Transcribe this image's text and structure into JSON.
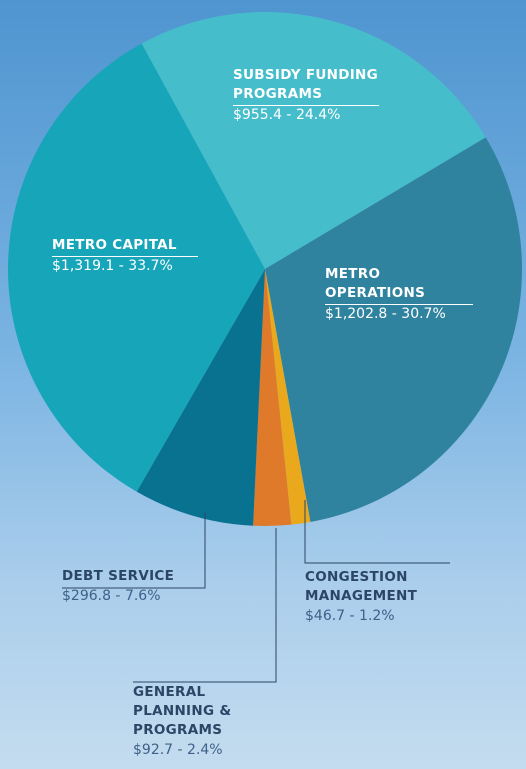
{
  "chart_data": {
    "type": "pie",
    "categories": [
      "SUBSIDY FUNDING PROGRAMS",
      "METRO OPERATIONS",
      "CONGESTION MANAGEMENT",
      "GENERAL PLANNING & PROGRAMS",
      "DEBT SERVICE",
      "METRO CAPITAL"
    ],
    "values": [
      955.4,
      1202.8,
      46.7,
      92.7,
      296.8,
      1319.1
    ],
    "value_labels": [
      "$955.4 - 24.4%",
      "$1,202.8 - 30.7%",
      "$46.7 - 1.2%",
      "$92.7 - 2.4%",
      "$296.8 - 7.6%",
      "$1,319.1 - 33.7%"
    ],
    "colors": [
      "#46bdcb",
      "#2f839e",
      "#eaa91c",
      "#de7a29",
      "#0a7291",
      "#17a5b9"
    ]
  }
}
